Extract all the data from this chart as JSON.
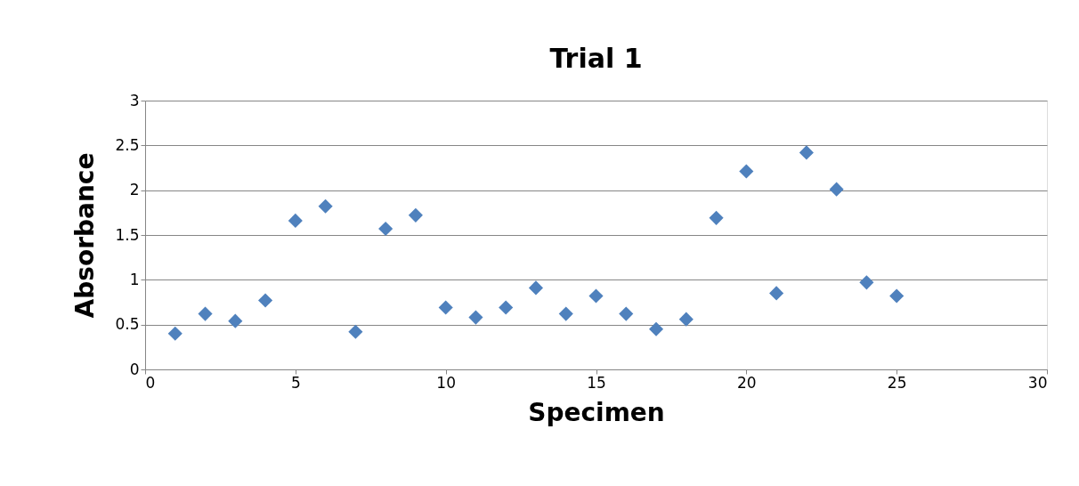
{
  "chart_data": {
    "type": "scatter",
    "title": "Trial 1",
    "xlabel": "Specimen",
    "ylabel": "Absorbance",
    "x": [
      1,
      2,
      3,
      4,
      5,
      6,
      7,
      8,
      9,
      10,
      11,
      12,
      13,
      14,
      15,
      16,
      17,
      18,
      19,
      20,
      21,
      22,
      23,
      24,
      25
    ],
    "series": [
      {
        "color": "#4f81bd",
        "values": [
          0.4,
          0.62,
          0.54,
          0.77,
          1.66,
          1.82,
          0.42,
          1.57,
          1.72,
          0.69,
          0.58,
          0.69,
          0.91,
          0.62,
          0.82,
          0.62,
          0.45,
          0.56,
          1.69,
          2.21,
          0.85,
          2.42,
          2.01,
          0.97,
          0.82
        ]
      }
    ],
    "xlim": [
      0,
      30
    ],
    "xticks": [
      0,
      5,
      10,
      15,
      20,
      25,
      30
    ],
    "ylim": [
      0,
      3
    ],
    "yticks": [
      0,
      0.5,
      1,
      1.5,
      2,
      2.5,
      3
    ],
    "grid": "y",
    "marker": "diamond",
    "legend": false
  }
}
